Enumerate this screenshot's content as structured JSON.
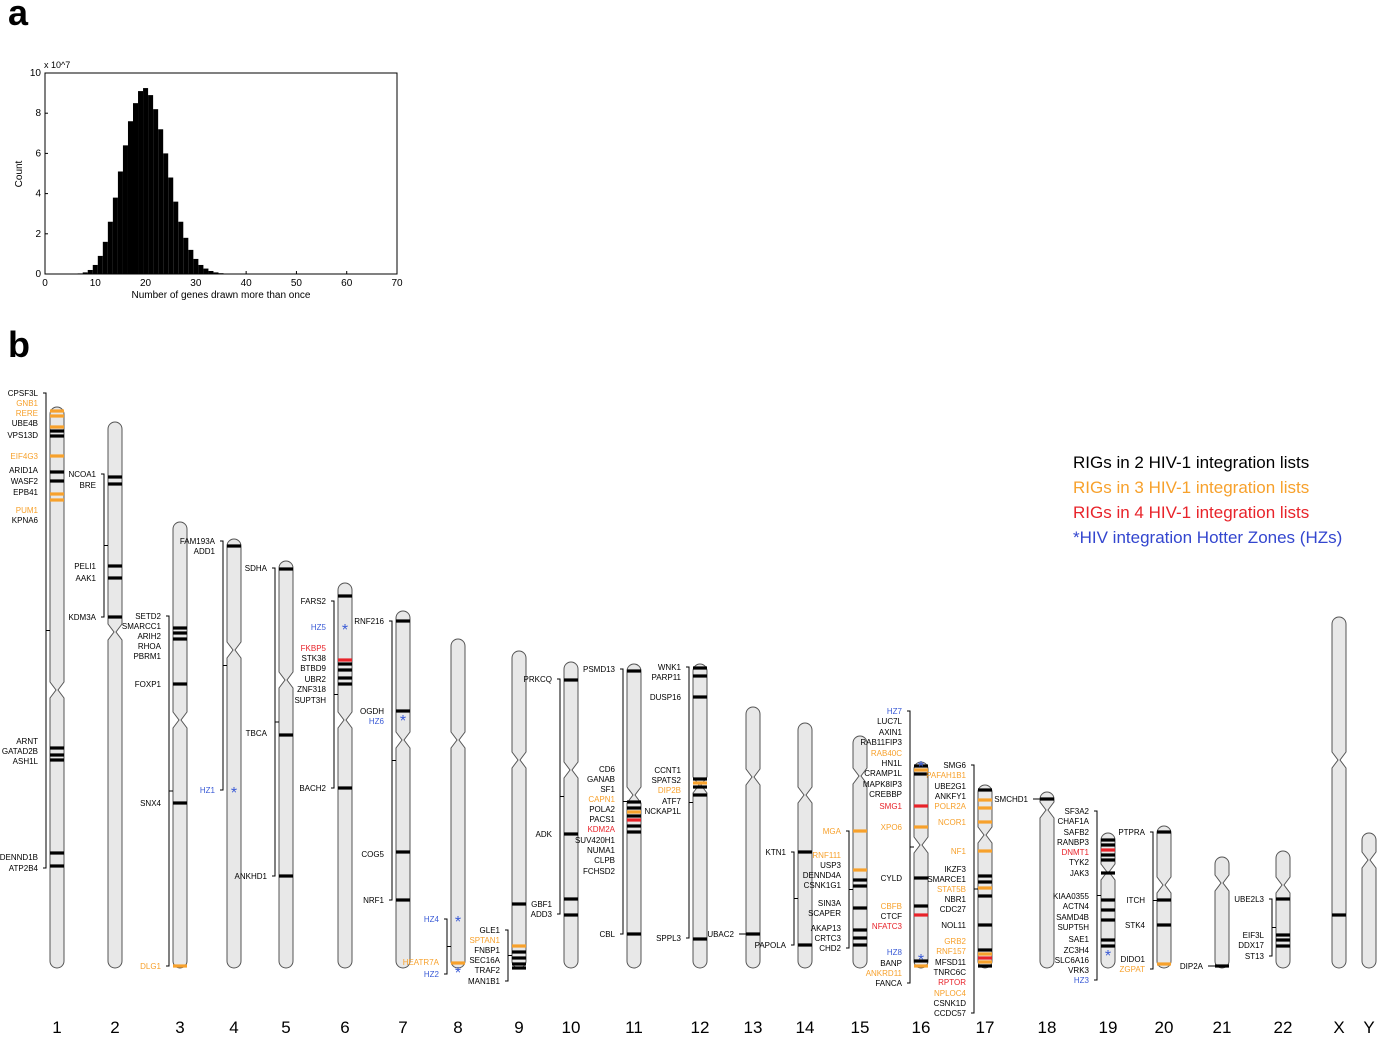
{
  "panel_a": {
    "letter": "a",
    "chart_data": {
      "type": "bar",
      "xlabel": "Number of genes drawn more than once",
      "ylabel": "Count",
      "y_multiplier": "x 10^7",
      "xlim": [
        0,
        70
      ],
      "ylim": [
        0,
        10
      ],
      "xticks": [
        0,
        10,
        20,
        30,
        40,
        50,
        60,
        70
      ],
      "yticks": [
        0,
        2,
        4,
        6,
        8,
        10
      ],
      "x": [
        6,
        7,
        8,
        9,
        10,
        11,
        12,
        13,
        14,
        15,
        16,
        17,
        18,
        19,
        20,
        21,
        22,
        23,
        24,
        25,
        26,
        27,
        28,
        29,
        30,
        31,
        32,
        33,
        34,
        35,
        36,
        37,
        38,
        39,
        40
      ],
      "values": [
        0.01,
        0.03,
        0.08,
        0.2,
        0.45,
        0.9,
        1.6,
        2.6,
        3.8,
        5.1,
        6.4,
        7.6,
        8.5,
        9.1,
        9.25,
        8.9,
        8.2,
        7.2,
        6.0,
        4.8,
        3.6,
        2.6,
        1.8,
        1.2,
        0.75,
        0.45,
        0.27,
        0.15,
        0.08,
        0.04,
        0.02,
        0.01,
        0.005,
        0.002,
        0.001
      ]
    }
  },
  "panel_b": {
    "letter": "b",
    "legend": [
      {
        "text": "RIGs in 2 HIV-1 integration lists",
        "color": "#000000"
      },
      {
        "text": "RIGs in 3 HIV-1 integration lists",
        "color": "#f7a12c"
      },
      {
        "text": "RIGs in 4 HIV-1 integration lists",
        "color": "#e8232a"
      },
      {
        "text": "*HIV integration Hotter Zones (HZs)",
        "color": "#3346cf"
      }
    ],
    "colors": {
      "black": "#000000",
      "orange": "#f7a12c",
      "red": "#e8232a",
      "blue": "#3b5bd6",
      "chrom_fill": "#e8e8e8",
      "chrom_stroke": "#555555"
    },
    "chromosomes": [
      {
        "name": "1",
        "genes": [
          {
            "label": "CPSF3L",
            "c": "black"
          },
          {
            "label": "GNB1",
            "c": "orange"
          },
          {
            "label": "RERE",
            "c": "orange"
          },
          {
            "label": "UBE4B",
            "c": "black"
          },
          {
            "label": "VPS13D",
            "c": "black"
          },
          {
            "label": "EIF4G3",
            "c": "orange"
          },
          {
            "label": "ARID1A",
            "c": "black"
          },
          {
            "label": "WASF2",
            "c": "black"
          },
          {
            "label": "EPB41",
            "c": "black"
          },
          {
            "label": "PUM1",
            "c": "orange"
          },
          {
            "label": "KPNA6",
            "c": "black"
          },
          {
            "label": "ARNT",
            "c": "black"
          },
          {
            "label": "GATAD2B",
            "c": "black"
          },
          {
            "label": "ASH1L",
            "c": "black"
          },
          {
            "label": "DENND1B",
            "c": "black"
          },
          {
            "label": "ATP2B4",
            "c": "black"
          }
        ]
      },
      {
        "name": "2",
        "genes": [
          {
            "label": "NCOA1",
            "c": "black"
          },
          {
            "label": "BRE",
            "c": "black"
          },
          {
            "label": "PELI1",
            "c": "black"
          },
          {
            "label": "AAK1",
            "c": "black"
          },
          {
            "label": "KDM3A",
            "c": "black"
          }
        ]
      },
      {
        "name": "3",
        "genes": [
          {
            "label": "SETD2",
            "c": "black"
          },
          {
            "label": "SMARCC1",
            "c": "black"
          },
          {
            "label": "ARIH2",
            "c": "black"
          },
          {
            "label": "RHOA",
            "c": "black"
          },
          {
            "label": "PBRM1",
            "c": "black"
          },
          {
            "label": "FOXP1",
            "c": "black"
          },
          {
            "label": "SNX4",
            "c": "black"
          },
          {
            "label": "DLG1",
            "c": "orange"
          }
        ]
      },
      {
        "name": "4",
        "genes": [
          {
            "label": "FAM193A",
            "c": "black"
          },
          {
            "label": "ADD1",
            "c": "black"
          },
          {
            "label": "HZ1",
            "c": "blue"
          }
        ]
      },
      {
        "name": "5",
        "genes": [
          {
            "label": "SDHA",
            "c": "black"
          },
          {
            "label": "TBCA",
            "c": "black"
          },
          {
            "label": "ANKHD1",
            "c": "black"
          }
        ]
      },
      {
        "name": "6",
        "genes": [
          {
            "label": "FARS2",
            "c": "black"
          },
          {
            "label": "HZ5",
            "c": "blue"
          },
          {
            "label": "FKBP5",
            "c": "red"
          },
          {
            "label": "STK38",
            "c": "black"
          },
          {
            "label": "BTBD9",
            "c": "black"
          },
          {
            "label": "UBR2",
            "c": "black"
          },
          {
            "label": "ZNF318",
            "c": "black"
          },
          {
            "label": "SUPT3H",
            "c": "black"
          },
          {
            "label": "BACH2",
            "c": "black"
          }
        ]
      },
      {
        "name": "7",
        "genes": [
          {
            "label": "RNF216",
            "c": "black"
          },
          {
            "label": "OGDH",
            "c": "black"
          },
          {
            "label": "HZ6",
            "c": "blue"
          },
          {
            "label": "COG5",
            "c": "black"
          },
          {
            "label": "NRF1",
            "c": "black"
          }
        ]
      },
      {
        "name": "8",
        "genes": [
          {
            "label": "HZ4",
            "c": "blue"
          },
          {
            "label": "HEATR7A",
            "c": "orange"
          },
          {
            "label": "HZ2",
            "c": "blue"
          }
        ]
      },
      {
        "name": "9",
        "genes": [
          {
            "label": "GLE1",
            "c": "black"
          },
          {
            "label": "SPTAN1",
            "c": "orange"
          },
          {
            "label": "FNBP1",
            "c": "black"
          },
          {
            "label": "SEC16A",
            "c": "black"
          },
          {
            "label": "TRAF2",
            "c": "black"
          },
          {
            "label": "MAN1B1",
            "c": "black"
          }
        ]
      },
      {
        "name": "10",
        "genes": [
          {
            "label": "PRKCQ",
            "c": "black"
          },
          {
            "label": "ADK",
            "c": "black"
          },
          {
            "label": "GBF1",
            "c": "black"
          },
          {
            "label": "ADD3",
            "c": "black"
          }
        ]
      },
      {
        "name": "11",
        "genes": [
          {
            "label": "PSMD13",
            "c": "black"
          },
          {
            "label": "CD6",
            "c": "black"
          },
          {
            "label": "GANAB",
            "c": "black"
          },
          {
            "label": "SF1",
            "c": "black"
          },
          {
            "label": "CAPN1",
            "c": "orange"
          },
          {
            "label": "POLA2",
            "c": "black"
          },
          {
            "label": "PACS1",
            "c": "black"
          },
          {
            "label": "KDM2A",
            "c": "red"
          },
          {
            "label": "SUV420H1",
            "c": "black"
          },
          {
            "label": "NUMA1",
            "c": "black"
          },
          {
            "label": "CLPB",
            "c": "black"
          },
          {
            "label": "FCHSD2",
            "c": "black"
          },
          {
            "label": "CBL",
            "c": "black"
          }
        ]
      },
      {
        "name": "12",
        "genes": [
          {
            "label": "WNK1",
            "c": "black"
          },
          {
            "label": "PARP11",
            "c": "black"
          },
          {
            "label": "DUSP16",
            "c": "black"
          },
          {
            "label": "CCNT1",
            "c": "black"
          },
          {
            "label": "SPATS2",
            "c": "black"
          },
          {
            "label": "DIP2B",
            "c": "orange"
          },
          {
            "label": "ATF7",
            "c": "black"
          },
          {
            "label": "NCKAP1L",
            "c": "black"
          },
          {
            "label": "SPPL3",
            "c": "black"
          }
        ]
      },
      {
        "name": "13",
        "genes": [
          {
            "label": "UBAC2",
            "c": "black"
          }
        ]
      },
      {
        "name": "14",
        "genes": [
          {
            "label": "KTN1",
            "c": "black"
          },
          {
            "label": "PAPOLA",
            "c": "black"
          }
        ]
      },
      {
        "name": "15",
        "genes": [
          {
            "label": "MGA",
            "c": "orange"
          },
          {
            "label": "RNF111",
            "c": "orange"
          },
          {
            "label": "USP3",
            "c": "black"
          },
          {
            "label": "DENND4A",
            "c": "black"
          },
          {
            "label": "CSNK1G1",
            "c": "black"
          },
          {
            "label": "SIN3A",
            "c": "black"
          },
          {
            "label": "SCAPER",
            "c": "black"
          },
          {
            "label": "AKAP13",
            "c": "black"
          },
          {
            "label": "CRTC3",
            "c": "black"
          },
          {
            "label": "CHD2",
            "c": "black"
          }
        ]
      },
      {
        "name": "16",
        "genes": [
          {
            "label": "HZ7",
            "c": "blue"
          },
          {
            "label": "LUC7L",
            "c": "black"
          },
          {
            "label": "AXIN1",
            "c": "black"
          },
          {
            "label": "RAB11FIP3",
            "c": "black"
          },
          {
            "label": "RAB40C",
            "c": "orange"
          },
          {
            "label": "HN1L",
            "c": "black"
          },
          {
            "label": "CRAMP1L",
            "c": "black"
          },
          {
            "label": "MAPK8IP3",
            "c": "black"
          },
          {
            "label": "CREBBP",
            "c": "black"
          },
          {
            "label": "SMG1",
            "c": "red"
          },
          {
            "label": "XPO6",
            "c": "orange"
          },
          {
            "label": "CYLD",
            "c": "black"
          },
          {
            "label": "CBFB",
            "c": "orange"
          },
          {
            "label": "CTCF",
            "c": "black"
          },
          {
            "label": "NFATC3",
            "c": "red"
          },
          {
            "label": "HZ8",
            "c": "blue"
          },
          {
            "label": "BANP",
            "c": "black"
          },
          {
            "label": "ANKRD11",
            "c": "orange"
          },
          {
            "label": "FANCA",
            "c": "black"
          }
        ]
      },
      {
        "name": "17",
        "genes": [
          {
            "label": "SMG6",
            "c": "black"
          },
          {
            "label": "PAFAH1B1",
            "c": "orange"
          },
          {
            "label": "UBE2G1",
            "c": "black"
          },
          {
            "label": "ANKFY1",
            "c": "black"
          },
          {
            "label": "POLR2A",
            "c": "orange"
          },
          {
            "label": "NCOR1",
            "c": "orange"
          },
          {
            "label": "NF1",
            "c": "orange"
          },
          {
            "label": "IKZF3",
            "c": "black"
          },
          {
            "label": "SMARCE1",
            "c": "black"
          },
          {
            "label": "STAT5B",
            "c": "orange"
          },
          {
            "label": "NBR1",
            "c": "black"
          },
          {
            "label": "CDC27",
            "c": "black"
          },
          {
            "label": "NOL11",
            "c": "black"
          },
          {
            "label": "GRB2",
            "c": "orange"
          },
          {
            "label": "RNF157",
            "c": "orange"
          },
          {
            "label": "MFSD11",
            "c": "black"
          },
          {
            "label": "TNRC6C",
            "c": "black"
          },
          {
            "label": "RPTOR",
            "c": "red"
          },
          {
            "label": "NPLOC4",
            "c": "orange"
          },
          {
            "label": "CSNK1D",
            "c": "black"
          },
          {
            "label": "CCDC57",
            "c": "black"
          }
        ]
      },
      {
        "name": "18",
        "genes": [
          {
            "label": "SMCHD1",
            "c": "black"
          }
        ]
      },
      {
        "name": "19",
        "genes": [
          {
            "label": "SF3A2",
            "c": "black"
          },
          {
            "label": "CHAF1A",
            "c": "black"
          },
          {
            "label": "SAFB2",
            "c": "black"
          },
          {
            "label": "RANBP3",
            "c": "black"
          },
          {
            "label": "DNMT1",
            "c": "red"
          },
          {
            "label": "TYK2",
            "c": "black"
          },
          {
            "label": "JAK3",
            "c": "black"
          },
          {
            "label": "KIAA0355",
            "c": "black"
          },
          {
            "label": "ACTN4",
            "c": "black"
          },
          {
            "label": "SAMD4B",
            "c": "black"
          },
          {
            "label": "SUPT5H",
            "c": "black"
          },
          {
            "label": "SAE1",
            "c": "black"
          },
          {
            "label": "ZC3H4",
            "c": "black"
          },
          {
            "label": "SLC6A16",
            "c": "black"
          },
          {
            "label": "VRK3",
            "c": "black"
          },
          {
            "label": "HZ3",
            "c": "blue"
          }
        ]
      },
      {
        "name": "20",
        "genes": [
          {
            "label": "PTPRA",
            "c": "black"
          },
          {
            "label": "ITCH",
            "c": "black"
          },
          {
            "label": "STK4",
            "c": "black"
          },
          {
            "label": "DIDO1",
            "c": "black"
          },
          {
            "label": "ZGPAT",
            "c": "orange"
          }
        ]
      },
      {
        "name": "21",
        "genes": [
          {
            "label": "DIP2A",
            "c": "black"
          }
        ]
      },
      {
        "name": "22",
        "genes": [
          {
            "label": "UBE2L3",
            "c": "black"
          },
          {
            "label": "EIF3L",
            "c": "black"
          },
          {
            "label": "DDX17",
            "c": "black"
          },
          {
            "label": "ST13",
            "c": "black"
          }
        ]
      },
      {
        "name": "X",
        "genes": []
      },
      {
        "name": "Y",
        "genes": []
      }
    ]
  }
}
